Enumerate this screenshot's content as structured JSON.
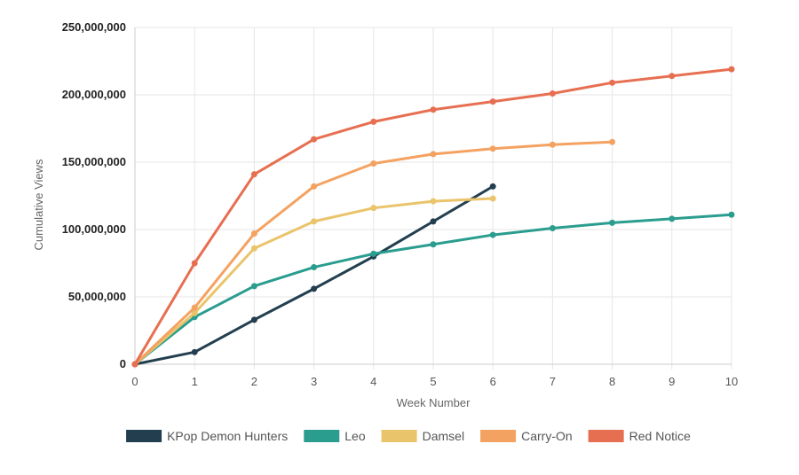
{
  "chart_data": {
    "type": "line",
    "title": "",
    "xlabel": "Week Number",
    "ylabel": "Cumulative Views",
    "x": [
      0,
      1,
      2,
      3,
      4,
      5,
      6,
      7,
      8,
      9,
      10
    ],
    "xlim": [
      0,
      10
    ],
    "ylim": [
      0,
      250000000
    ],
    "y_ticks": [
      0,
      50000000,
      100000000,
      150000000,
      200000000,
      250000000
    ],
    "y_tick_labels": [
      "0",
      "50,000,000",
      "100,000,000",
      "150,000,000",
      "200,000,000",
      "250,000,000"
    ],
    "x_tick_labels": [
      "0",
      "1",
      "2",
      "3",
      "4",
      "5",
      "6",
      "7",
      "8",
      "9",
      "10"
    ],
    "grid": true,
    "legend_position": "bottom",
    "series": [
      {
        "name": "KPop Demon Hunters",
        "color": "#233f4f",
        "x": [
          0,
          1,
          2,
          3,
          4,
          5,
          6
        ],
        "values": [
          0,
          9000000,
          33000000,
          56000000,
          80000000,
          106000000,
          132000000
        ]
      },
      {
        "name": "Leo",
        "color": "#2a9d8f",
        "x": [
          0,
          1,
          2,
          3,
          4,
          5,
          6,
          7,
          8,
          9,
          10
        ],
        "values": [
          0,
          35000000,
          58000000,
          72000000,
          82000000,
          89000000,
          96000000,
          101000000,
          105000000,
          108000000,
          111000000
        ]
      },
      {
        "name": "Damsel",
        "color": "#e9c46a",
        "x": [
          0,
          1,
          2,
          3,
          4,
          5,
          6
        ],
        "values": [
          0,
          38000000,
          86000000,
          106000000,
          116000000,
          121000000,
          123000000
        ]
      },
      {
        "name": "Carry-On",
        "color": "#f4a261",
        "x": [
          0,
          1,
          2,
          3,
          4,
          5,
          6,
          7,
          8
        ],
        "values": [
          0,
          42000000,
          97000000,
          132000000,
          149000000,
          156000000,
          160000000,
          163000000,
          165000000
        ]
      },
      {
        "name": "Red Notice",
        "color": "#e76f51",
        "x": [
          0,
          1,
          2,
          3,
          4,
          5,
          6,
          7,
          8,
          9,
          10
        ],
        "values": [
          0,
          75000000,
          141000000,
          167000000,
          180000000,
          189000000,
          195000000,
          201000000,
          209000000,
          214000000,
          219000000
        ]
      }
    ]
  }
}
